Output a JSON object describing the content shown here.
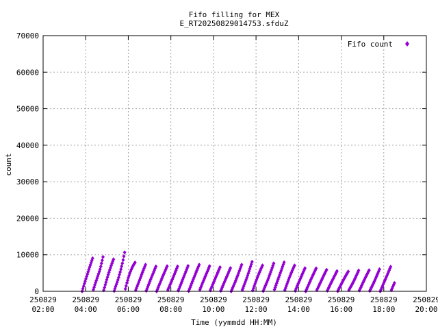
{
  "chart_data": {
    "type": "scatter",
    "title_line1": "Fifo filling for MEX",
    "title_line2": "E_RT20250829014753.sfduZ",
    "xlabel": "Time (yymmdd HH:MM)",
    "ylabel": "count",
    "x_range": [
      "2025-08-29 02:00",
      "2025-08-29 20:00"
    ],
    "ylim": [
      0,
      70000
    ],
    "y_ticks": [
      "0",
      "10000",
      "20000",
      "30000",
      "40000",
      "50000",
      "60000",
      "70000"
    ],
    "x_ticks": [
      {
        "date": "250829",
        "time": "02:00"
      },
      {
        "date": "250829",
        "time": "04:00"
      },
      {
        "date": "250829",
        "time": "06:00"
      },
      {
        "date": "250829",
        "time": "08:00"
      },
      {
        "date": "250829",
        "time": "10:00"
      },
      {
        "date": "250829",
        "time": "12:00"
      },
      {
        "date": "250829",
        "time": "14:00"
      },
      {
        "date": "250829",
        "time": "16:00"
      },
      {
        "date": "250829",
        "time": "18:00"
      },
      {
        "date": "250829",
        "time": "20:00"
      }
    ],
    "grid": true,
    "legend_position": "top-right",
    "series": [
      {
        "name": "Fifo count",
        "color": "#9400d3",
        "marker": "diamond",
        "data_start": "2025-08-29 03:50",
        "data_end": "2025-08-29 18:30",
        "sampling": "sawtooth: count ramps up from 0 to the peak envelope, then resets to 0",
        "peak_envelope": [
          {
            "time": "03:50",
            "value": 10000
          },
          {
            "time": "04:15",
            "value": 9300
          },
          {
            "time": "04:40",
            "value": 8800
          },
          {
            "time": "04:55",
            "value": 10500
          },
          {
            "time": "05:15",
            "value": 9500
          },
          {
            "time": "05:30",
            "value": 8600
          },
          {
            "time": "05:45",
            "value": 10000
          },
          {
            "time": "05:55",
            "value": 11600
          },
          {
            "time": "06:20",
            "value": 8000
          },
          {
            "time": "07:00",
            "value": 7500
          },
          {
            "time": "08:00",
            "value": 6900
          },
          {
            "time": "09:00",
            "value": 7500
          },
          {
            "time": "10:00",
            "value": 7000
          },
          {
            "time": "11:00",
            "value": 6800
          },
          {
            "time": "11:55",
            "value": 8600
          },
          {
            "time": "12:30",
            "value": 7000
          },
          {
            "time": "13:00",
            "value": 8100
          },
          {
            "time": "13:30",
            "value": 8200
          },
          {
            "time": "14:00",
            "value": 7000
          },
          {
            "time": "15:00",
            "value": 6300
          },
          {
            "time": "16:00",
            "value": 5800
          },
          {
            "time": "16:30",
            "value": 5300
          },
          {
            "time": "17:00",
            "value": 6200
          },
          {
            "time": "17:30",
            "value": 6000
          },
          {
            "time": "18:00",
            "value": 6800
          },
          {
            "time": "18:30",
            "value": 6900
          }
        ]
      }
    ]
  }
}
